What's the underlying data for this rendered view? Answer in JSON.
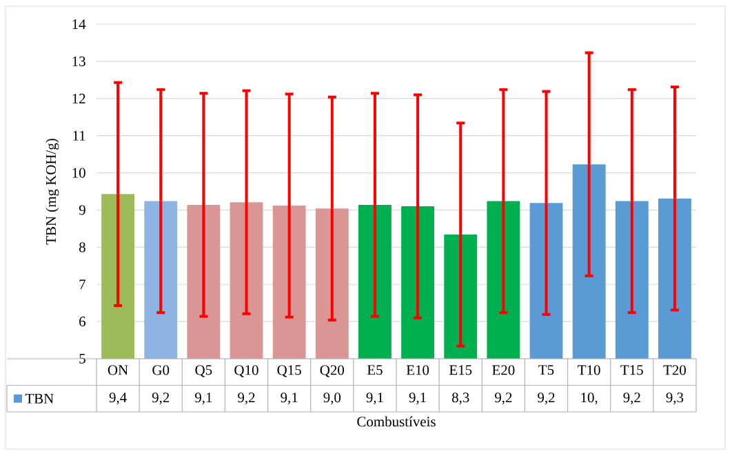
{
  "chart_data": {
    "type": "bar",
    "xlabel": "Combustíveis",
    "ylabel": "TBN (mg KOH/g)",
    "categories": [
      "ON",
      "G0",
      "Q5",
      "Q10",
      "Q15",
      "Q20",
      "E5",
      "E10",
      "E15",
      "E20",
      "T5",
      "T10",
      "T15",
      "T20"
    ],
    "series": [
      {
        "name": "TBN",
        "color": "#5b9bd5",
        "colors": [
          "#9bbb59",
          "#8eb4e3",
          "#d99694",
          "#d99694",
          "#d99694",
          "#d99694",
          "#00b050",
          "#00b050",
          "#00b050",
          "#00b050",
          "#5b9bd5",
          "#5b9bd5",
          "#5b9bd5",
          "#5b9bd5"
        ],
        "values": [
          9.43,
          9.24,
          9.14,
          9.21,
          9.12,
          9.04,
          9.14,
          9.1,
          8.34,
          9.24,
          9.19,
          10.23,
          9.24,
          9.31
        ],
        "errors": [
          3,
          3,
          3,
          3,
          3,
          3,
          3,
          3,
          3,
          3,
          3,
          3,
          3,
          3
        ],
        "value_labels": [
          "9,4",
          "9,2",
          "9,1",
          "9,2",
          "9,1",
          "9,0",
          "9,1",
          "9,1",
          "8,3",
          "9,2",
          "9,2",
          "10,",
          "9,2",
          "9,3"
        ]
      }
    ],
    "ylim": [
      5,
      14
    ],
    "yticks": [
      5,
      6,
      7,
      8,
      9,
      10,
      11,
      12,
      13,
      14
    ],
    "grid": "y",
    "legend": "bottom"
  }
}
